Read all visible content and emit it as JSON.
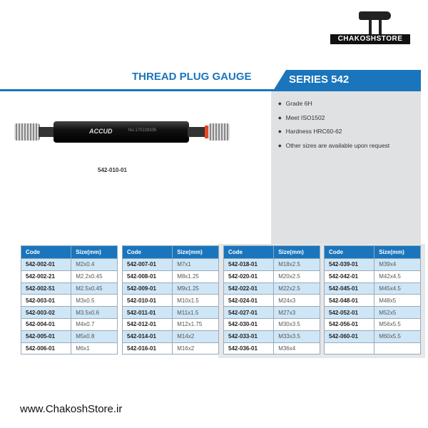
{
  "logo": {
    "text": "CHAKOSHSTORE"
  },
  "header": {
    "title": "THREAD PLUG GAUGE",
    "series": "SERIES 542",
    "accent": "#1a75bc"
  },
  "product": {
    "brand": "ACCUD",
    "serial": "No.170228335",
    "caption": "542-010-01"
  },
  "features": [
    "Grade 6H",
    "Meet ISO1502",
    "Hardness HRC60-62",
    "Other sizes are available upon request"
  ],
  "table_headers": {
    "code": "Code",
    "size": "Size(mm)"
  },
  "tables": [
    [
      [
        "542-002-01",
        "M2x0.4"
      ],
      [
        "542-002-21",
        "M2.2x0.45"
      ],
      [
        "542-002-51",
        "M2.5x0.45"
      ],
      [
        "542-003-01",
        "M3x0.5"
      ],
      [
        "542-003-02",
        "M3.5x0.6"
      ],
      [
        "542-004-01",
        "M4x0.7"
      ],
      [
        "542-005-01",
        "M5x0.8"
      ],
      [
        "542-006-01",
        "M6x1"
      ]
    ],
    [
      [
        "542-007-01",
        "M7x1"
      ],
      [
        "542-008-01",
        "M8x1.25"
      ],
      [
        "542-009-01",
        "M9x1.25"
      ],
      [
        "542-010-01",
        "M10x1.5"
      ],
      [
        "542-011-01",
        "M11x1.5"
      ],
      [
        "542-012-01",
        "M12x1.75"
      ],
      [
        "542-014-01",
        "M14x2"
      ],
      [
        "542-016-01",
        "M16x2"
      ]
    ],
    [
      [
        "542-018-01",
        "M18x2.5"
      ],
      [
        "542-020-01",
        "M20x2.5"
      ],
      [
        "542-022-01",
        "M22x2.5"
      ],
      [
        "542-024-01",
        "M24x3"
      ],
      [
        "542-027-01",
        "M27x3"
      ],
      [
        "542-030-01",
        "M30x3.5"
      ],
      [
        "542-033-01",
        "M33x3.5"
      ],
      [
        "542-036-01",
        "M36x4"
      ]
    ],
    [
      [
        "542-039-01",
        "M39x4"
      ],
      [
        "542-042-01",
        "M42x4.5"
      ],
      [
        "542-045-01",
        "M45x4.5"
      ],
      [
        "542-048-01",
        "M48x5"
      ],
      [
        "542-052-01",
        "M52x5"
      ],
      [
        "542-056-01",
        "M56x5.5"
      ],
      [
        "542-060-01",
        "M60x5.5"
      ],
      [
        "",
        ""
      ]
    ]
  ],
  "footer": {
    "url": "www.ChakoshStore.ir"
  }
}
